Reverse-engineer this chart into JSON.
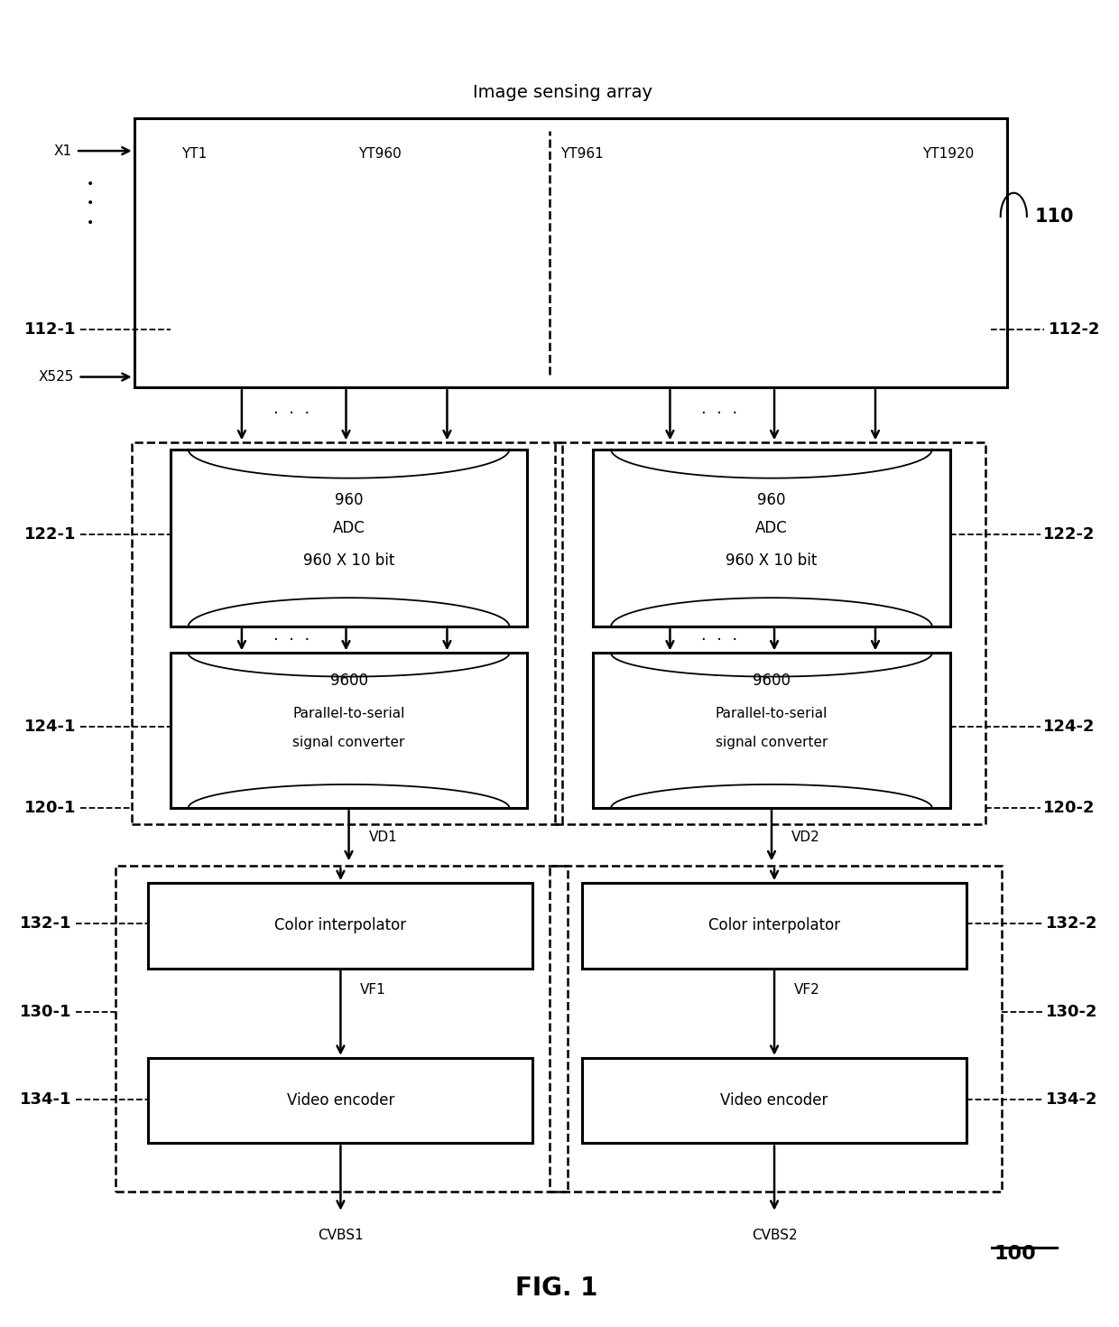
{
  "title": "Image sensing array",
  "fig_label": "FIG. 1",
  "ref_100": "100",
  "bg_color": "#ffffff",
  "line_color": "#000000",
  "labels": {
    "YT1": "YT1",
    "YT960": "YT960",
    "YT961": "YT961",
    "YT1920": "YT1920",
    "X1": "X1",
    "X525": "X525",
    "ref_110": "110",
    "ref_112_1": "112-1",
    "ref_112_2": "112-2",
    "ref_120_1": "120-1",
    "ref_120_2": "120-2",
    "ref_122_1": "122-1",
    "ref_122_2": "122-2",
    "ref_124_1": "124-1",
    "ref_124_2": "124-2",
    "ref_130_1": "130-1",
    "ref_130_2": "130-2",
    "ref_132_1": "132-1",
    "ref_132_2": "132-2",
    "ref_134_1": "134-1",
    "ref_134_2": "134-2",
    "adc_left_top": "960",
    "adc_left_mid": "ADC",
    "adc_left_bot": "960 X 10 bit",
    "adc_right_top": "960",
    "adc_right_mid": "ADC",
    "adc_right_bot": "960 X 10 bit",
    "pts_left_top": "9600",
    "pts_left_line1": "Parallel-to-serial",
    "pts_left_line2": "signal converter",
    "pts_right_top": "9600",
    "pts_right_line1": "Parallel-to-serial",
    "pts_right_line2": "signal converter",
    "VD1": "VD1",
    "VD2": "VD2",
    "VF1": "VF1",
    "VF2": "VF2",
    "CVBS1": "CVBS1",
    "CVBS2": "CVBS2",
    "color_interp_left": "Color interpolator",
    "color_interp_right": "Color interpolator",
    "video_enc_left": "Video encoder",
    "video_enc_right": "Video encoder"
  }
}
